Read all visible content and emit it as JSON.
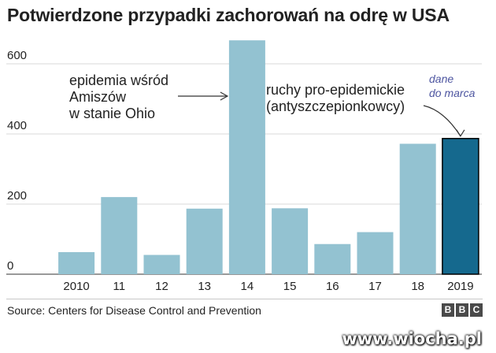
{
  "header": {
    "title": "Potwierdzone przypadki zachorowań na odrę w USA"
  },
  "chart_data": {
    "type": "bar",
    "categories": [
      "2010",
      "11",
      "12",
      "13",
      "14",
      "15",
      "16",
      "17",
      "18",
      "2019"
    ],
    "values": [
      63,
      220,
      55,
      187,
      667,
      188,
      86,
      120,
      372,
      387
    ],
    "highlight_index": 9,
    "ylim": [
      0,
      680
    ],
    "yticks": [
      0,
      200,
      400,
      600
    ],
    "grid": "horizontal",
    "colors": {
      "bar": "#93c2d1",
      "highlight": "#15698e",
      "highlight_border": "#000000",
      "note": "#4d55a0",
      "grid": "#d8d8d8"
    },
    "annotations": [
      {
        "id": "amish",
        "lines": [
          "epidemia wśród",
          "Amiszów",
          "w stanie Ohio"
        ],
        "target": "14"
      },
      {
        "id": "antivax",
        "lines": [
          "ruchy pro-epidemickie",
          "(antyszczepionkowcy)"
        ],
        "target": "2019"
      },
      {
        "id": "partial",
        "lines": [
          "dane",
          "do marca"
        ],
        "target": "2019"
      }
    ]
  },
  "footer": {
    "source": "Source: Centers for Disease Control and Prevention",
    "logo": [
      "B",
      "B",
      "C"
    ],
    "watermark": "www.wiocha.pl"
  }
}
